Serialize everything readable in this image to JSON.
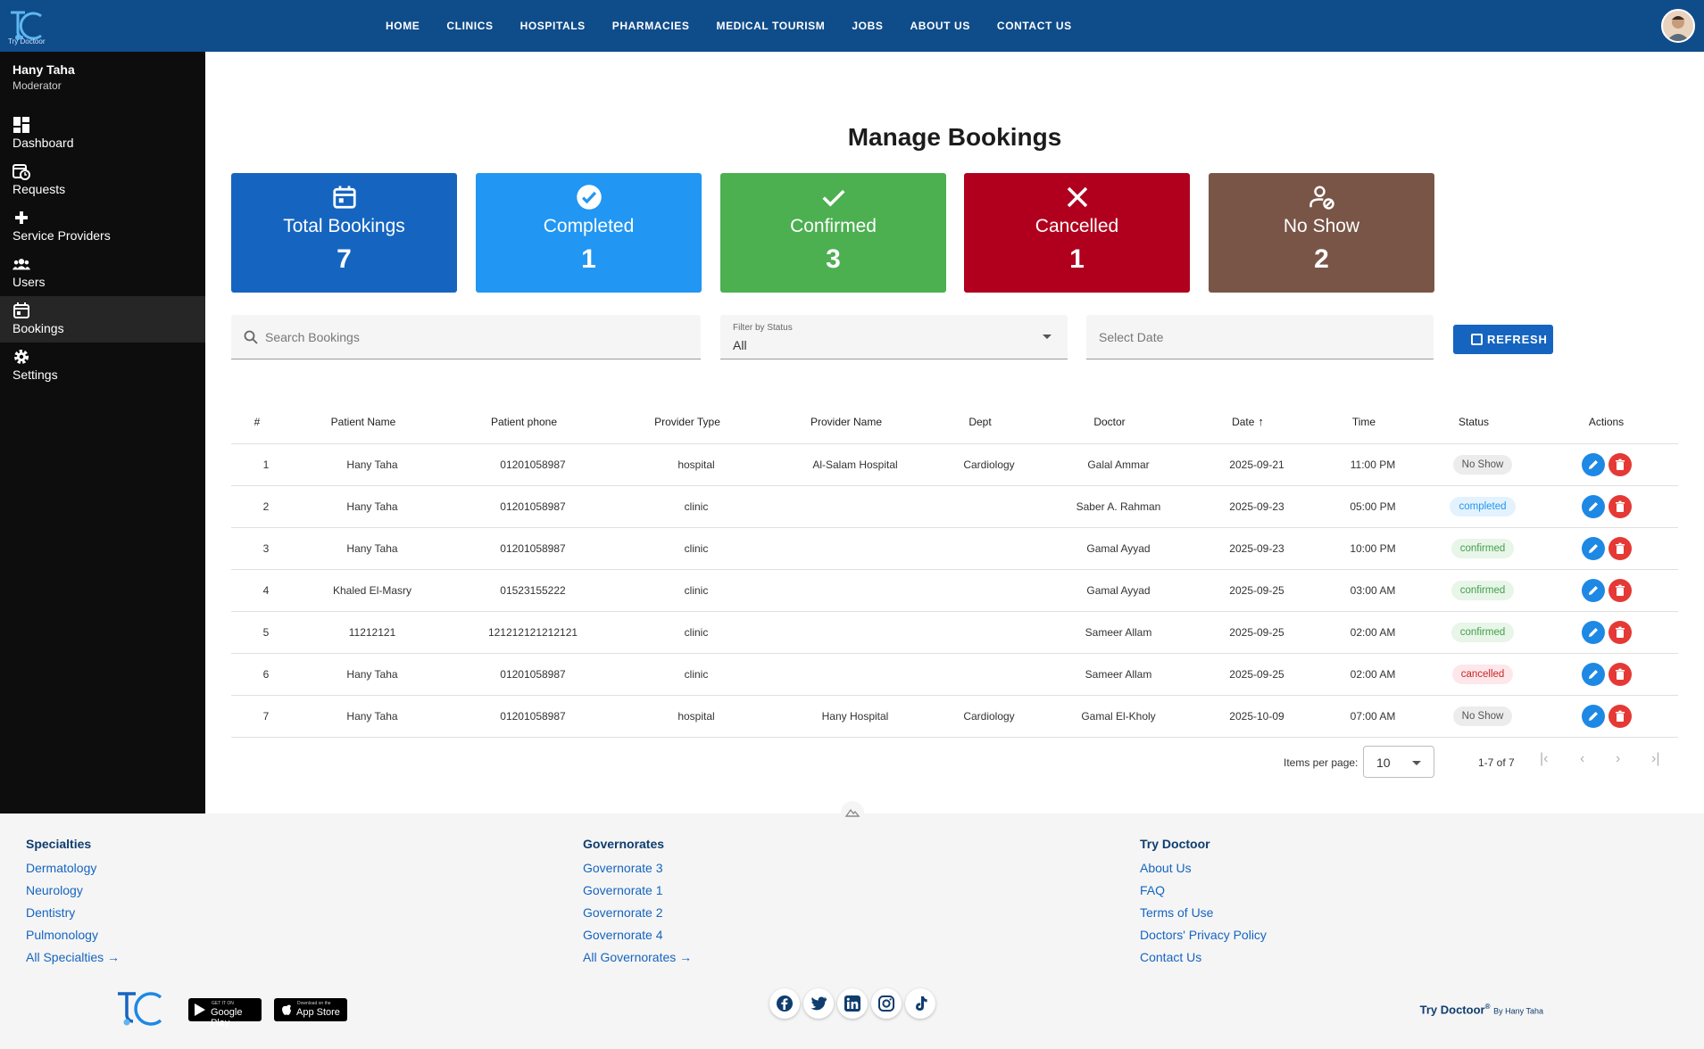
{
  "app": {
    "logo_text": "Try Doctoor"
  },
  "nav": {
    "items": [
      "HOME",
      "CLINICS",
      "HOSPITALS",
      "PHARMACIES",
      "MEDICAL TOURISM",
      "JOBS",
      "ABOUT US",
      "CONTACT US"
    ]
  },
  "user": {
    "name": "Hany Taha",
    "role": "Moderator"
  },
  "sidebar": {
    "items": [
      {
        "label": "Dashboard",
        "icon": "dashboard-icon"
      },
      {
        "label": "Requests",
        "icon": "requests-icon"
      },
      {
        "label": "Service Providers",
        "icon": "plus-icon"
      },
      {
        "label": "Users",
        "icon": "users-icon"
      },
      {
        "label": "Bookings",
        "icon": "calendar-icon",
        "active": true
      },
      {
        "label": "Settings",
        "icon": "gear-icon"
      }
    ]
  },
  "page": {
    "title": "Manage Bookings"
  },
  "stats": [
    {
      "label": "Total Bookings",
      "value": "7",
      "color": "#1565c0",
      "icon": "calendar-icon"
    },
    {
      "label": "Completed",
      "value": "1",
      "color": "#2196f3",
      "icon": "check-circle-icon"
    },
    {
      "label": "Confirmed",
      "value": "3",
      "color": "#4caf50",
      "icon": "check-icon"
    },
    {
      "label": "Cancelled",
      "value": "1",
      "color": "#b0001e",
      "icon": "close-icon"
    },
    {
      "label": "No Show",
      "value": "2",
      "color": "#795548",
      "icon": "person-off-icon"
    }
  ],
  "filters": {
    "search_placeholder": "Search Bookings",
    "status_label": "Filter by Status",
    "status_value": "All",
    "date_placeholder": "Select Date",
    "refresh_label": "REFRESH"
  },
  "table": {
    "columns": [
      "#",
      "Patient Name",
      "Patient phone",
      "Provider Type",
      "Provider Name",
      "Dept",
      "Doctor",
      "Date",
      "Time",
      "Status",
      "Actions"
    ],
    "rows": [
      {
        "n": "1",
        "patient": "Hany Taha",
        "phone": "01201058987",
        "ptype": "hospital",
        "pname": "Al-Salam Hospital",
        "dept": "Cardiology",
        "doctor": "Galal Ammar",
        "date": "2025-09-21",
        "time": "11:00 PM",
        "status": "No Show",
        "status_kind": "noshow"
      },
      {
        "n": "2",
        "patient": "Hany Taha",
        "phone": "01201058987",
        "ptype": "clinic",
        "pname": "",
        "dept": "",
        "doctor": "Saber A. Rahman",
        "date": "2025-09-23",
        "time": "05:00 PM",
        "status": "completed",
        "status_kind": "completed"
      },
      {
        "n": "3",
        "patient": "Hany Taha",
        "phone": "01201058987",
        "ptype": "clinic",
        "pname": "",
        "dept": "",
        "doctor": "Gamal Ayyad",
        "date": "2025-09-23",
        "time": "10:00 PM",
        "status": "confirmed",
        "status_kind": "confirmed"
      },
      {
        "n": "4",
        "patient": "Khaled El-Masry",
        "phone": "01523155222",
        "ptype": "clinic",
        "pname": "",
        "dept": "",
        "doctor": "Gamal Ayyad",
        "date": "2025-09-25",
        "time": "03:00 AM",
        "status": "confirmed",
        "status_kind": "confirmed"
      },
      {
        "n": "5",
        "patient": "11212121",
        "phone": "121212121212121",
        "ptype": "clinic",
        "pname": "",
        "dept": "",
        "doctor": "Sameer Allam",
        "date": "2025-09-25",
        "time": "02:00 AM",
        "status": "confirmed",
        "status_kind": "confirmed"
      },
      {
        "n": "6",
        "patient": "Hany Taha",
        "phone": "01201058987",
        "ptype": "clinic",
        "pname": "",
        "dept": "",
        "doctor": "Sameer Allam",
        "date": "2025-09-25",
        "time": "02:00 AM",
        "status": "cancelled",
        "status_kind": "cancelled"
      },
      {
        "n": "7",
        "patient": "Hany Taha",
        "phone": "01201058987",
        "ptype": "hospital",
        "pname": "Hany Hospital",
        "dept": "Cardiology",
        "doctor": "Gamal El-Kholy",
        "date": "2025-10-09",
        "time": "07:00 AM",
        "status": "No Show",
        "status_kind": "noshow"
      }
    ]
  },
  "pagination": {
    "items_label": "Items per page:",
    "per_page": "10",
    "range": "1-7 of 7"
  },
  "footer": {
    "columns": [
      {
        "title": "Specialties",
        "links": [
          "Dermatology",
          "Neurology",
          "Dentistry",
          "Pulmonology",
          "All Specialties →"
        ]
      },
      {
        "title": "Governorates",
        "links": [
          "Governorate 3",
          "Governorate 1",
          "Governorate 2",
          "Governorate 4",
          "All Governorates →"
        ]
      },
      {
        "title": "Try Doctoor",
        "links": [
          "About Us",
          "FAQ",
          "Terms of Use",
          "Doctors' Privacy Policy",
          "Contact Us"
        ]
      }
    ],
    "stores": [
      {
        "small": "GET IT ON",
        "big": "Google Play"
      },
      {
        "small": "Download on the",
        "big": "App Store"
      }
    ],
    "social": [
      "facebook-icon",
      "twitter-icon",
      "linkedin-icon",
      "instagram-icon",
      "tiktok-icon"
    ],
    "brand": "Try Doctoor",
    "brand_mark": "®",
    "brand_by": "By Hany Taha"
  }
}
